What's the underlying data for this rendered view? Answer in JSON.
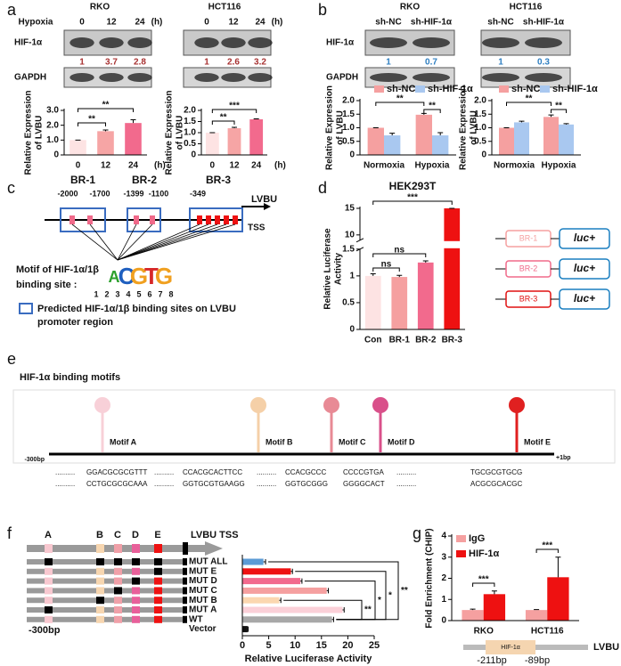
{
  "panel_labels": [
    "a",
    "b",
    "c",
    "d",
    "e",
    "f",
    "g"
  ],
  "blots": [
    {
      "title": "RKO",
      "condition": "Hypoxia",
      "lanes": [
        "0",
        "12",
        "24"
      ],
      "unit": "(h)",
      "rows": [
        "HIF-1α",
        "GAPDH"
      ],
      "quant": [
        "1",
        "3.7",
        "2.8"
      ]
    },
    {
      "title": "HCT116",
      "lanes": [
        "0",
        "12",
        "24"
      ],
      "unit": "(h)",
      "quant": [
        "1",
        "2.6",
        "3.2"
      ]
    },
    {
      "title": "RKO",
      "lanes": [
        "sh-NC",
        "sh-HIF-1α"
      ],
      "rows": [
        "HIF-1α",
        "GAPDH"
      ],
      "quant": [
        "1",
        "0.7"
      ]
    },
    {
      "title": "HCT116",
      "lanes": [
        "sh-NC",
        "sh-HIF-1α"
      ],
      "quant": [
        "1",
        "0.3"
      ]
    }
  ],
  "promoter": {
    "regions": [
      {
        "name": "BR-1",
        "start": "-2000",
        "end": "-1700"
      },
      {
        "name": "BR-2",
        "start": "-1399",
        "end": "-1100"
      },
      {
        "name": "BR-3",
        "start": "-349"
      }
    ],
    "gene": "LVBU",
    "tss": "TSS",
    "motif_title": [
      "Motif of HIF-1α/1β",
      "binding site :"
    ],
    "logo": [
      "A",
      "C",
      "G",
      "T",
      "G"
    ],
    "positions": [
      "1",
      "2",
      "3",
      "4",
      "5",
      "6",
      "7",
      "8"
    ],
    "legend": [
      "Predicted HIF-1α/1β binding sites on LVBU",
      "promoter region"
    ]
  },
  "constructs": {
    "items": [
      "BR-1",
      "BR-2",
      "BR-3"
    ],
    "reporter": "luc+"
  },
  "motifs": {
    "title": "HIF-1α binding motifs",
    "start": "-300bp",
    "end": "+1bp",
    "spacer": "..........",
    "items": [
      {
        "name": "Motif A",
        "seq": [
          "GGACGCGCGTTT",
          "CCTGCGCGCAAA"
        ]
      },
      {
        "name": "Motif B",
        "seq": [
          "CCACGCACTTCC",
          "GGTGCGTGAAGG"
        ]
      },
      {
        "name": "Motif C",
        "seq": [
          "CCACGCCC",
          "GGTGCGGG"
        ]
      },
      {
        "name": "Motif D",
        "seq": [
          "CCCCGTGA",
          "GGGGCACT"
        ]
      },
      {
        "name": "Motif E",
        "seq": [
          "TGCGCGTGCG",
          "ACGCGCACGC"
        ]
      }
    ]
  },
  "reporter_map": {
    "letters": [
      "A",
      "B",
      "C",
      "D",
      "E"
    ],
    "gene": "LVBU TSS",
    "start": "-300bp"
  },
  "chip_map": {
    "box": "HIF-1α",
    "gene": "LVBU",
    "sites": [
      "-211bp",
      "-89bp"
    ]
  },
  "chart_data": [
    {
      "type": "bar",
      "categories": [
        "0",
        "12",
        "24"
      ],
      "xlabel": "(h)",
      "ylabel": [
        "Relative Expression",
        "of LVBU"
      ],
      "values": [
        1,
        1.6,
        2.15
      ],
      "errors": [
        0,
        0.08,
        0.22
      ],
      "colors": [
        "#fde3e3",
        "#f6a5a5",
        "#f26a8d"
      ],
      "ylim": [
        0,
        3
      ],
      "yticks": [
        0,
        {
          "value": 1,
          "label": "1.0"
        },
        {
          "value": 2,
          "label": "2.0"
        },
        {
          "value": 3,
          "label": "3.0"
        }
      ],
      "significance": [
        "**",
        "**"
      ]
    },
    {
      "type": "bar",
      "categories": [
        "0",
        "12",
        "24"
      ],
      "xlabel": "(h)",
      "ylabel": [
        "Relative Expression",
        "of LVBU"
      ],
      "values": [
        1,
        1.2,
        1.6
      ],
      "errors": [
        0,
        0.04,
        0.02
      ],
      "colors": [
        "#fde3e3",
        "#f6a5a5",
        "#f26a8d"
      ],
      "ylim": [
        0,
        2
      ],
      "yticks": [
        0,
        0.5,
        {
          "value": 1,
          "label": "1.0"
        },
        1.5,
        {
          "value": 2,
          "label": "2.0"
        }
      ],
      "significance": [
        "**",
        "***"
      ]
    },
    {
      "type": "bar",
      "categories": [
        "Normoxia",
        "Hypoxia"
      ],
      "ylabel": [
        "Relative Expression",
        "of LVBU"
      ],
      "series": [
        {
          "name": "sh-NC",
          "color": "#f5a0a0",
          "values": [
            1,
            1.48
          ],
          "errors": [
            0,
            0.05
          ]
        },
        {
          "name": "sh-HIF-1α",
          "color": "#a9c8f0",
          "values": [
            0.72,
            0.72
          ],
          "errors": [
            0.08,
            0.1
          ]
        }
      ],
      "ylim": [
        0,
        2
      ],
      "yticks": [
        0,
        0.5,
        {
          "value": 1,
          "label": "1.0"
        },
        1.5,
        {
          "value": 2,
          "label": "2.0"
        }
      ],
      "significance": [
        "**",
        "**"
      ]
    },
    {
      "type": "bar",
      "categories": [
        "Normoxia",
        "Hypoxia"
      ],
      "ylabel": [
        "Relative Expression",
        "of LVBU"
      ],
      "series": [
        {
          "name": "sh-NC",
          "color": "#f5a0a0",
          "values": [
            1,
            1.4
          ],
          "errors": [
            0,
            0.07
          ]
        },
        {
          "name": "sh-HIF-1α",
          "color": "#a9c8f0",
          "values": [
            1.2,
            1.12
          ],
          "errors": [
            0.04,
            0.03
          ]
        }
      ],
      "ylim": [
        0,
        2
      ],
      "yticks": [
        0,
        0.5,
        {
          "value": 1,
          "label": "1.0"
        },
        1.5,
        {
          "value": 2,
          "label": "2.0"
        }
      ],
      "significance": [
        "**",
        "**"
      ]
    },
    {
      "type": "bar",
      "title": "HEK293T",
      "categories": [
        "Con",
        "BR-1",
        "BR-2",
        "BR-3"
      ],
      "ylabel": [
        "Relative Luciferase",
        "Activity"
      ],
      "values": [
        1,
        0.98,
        1.25,
        15
      ],
      "errors": [
        0.04,
        0.03,
        0.03,
        0
      ],
      "colors": [
        "#fde3e3",
        "#f5a0a0",
        "#f26a8d",
        "#ee1111"
      ],
      "ylim": [
        0,
        15
      ],
      "ybreak": [
        1.5,
        9
      ],
      "yticks": [
        0,
        0.5,
        1,
        1.5,
        10,
        15
      ],
      "significance": [
        "***",
        "ns",
        "ns"
      ]
    },
    {
      "type": "bar",
      "orientation": "horizontal",
      "categories": [
        "MUT ALL",
        "MUT E",
        "MUT D",
        "MUT C",
        "MUT B",
        "MUT A",
        "WT",
        "Vector"
      ],
      "values": [
        4,
        9.2,
        11,
        16,
        7,
        19,
        17,
        1
      ],
      "errors": [
        0.4,
        0.3,
        0.3,
        0.3,
        0.3,
        0.3,
        0.3,
        0.1
      ],
      "colors": [
        "#5b9bd5",
        "#ee1111",
        "#f26a8d",
        "#f5a0a0",
        "#fbd7b0",
        "#fbd0d8",
        "#a8a8a8",
        "#111111"
      ],
      "xlabel": "Relative Luciferase Activity",
      "xlim": [
        0,
        25
      ],
      "xticks": [
        0,
        5,
        10,
        15,
        20,
        25
      ],
      "significance": [
        "**",
        "*",
        "*",
        "**"
      ]
    },
    {
      "type": "bar",
      "categories": [
        "RKO",
        "HCT116"
      ],
      "ylabel": "Fold Enrichment (CHIP)",
      "series": [
        {
          "name": "IgG",
          "color": "#f5a0a0",
          "values": [
            0.5,
            0.5
          ],
          "errors": [
            0.04,
            0.02
          ]
        },
        {
          "name": "HIF-1α",
          "color": "#ee1111",
          "values": [
            1.25,
            2.05
          ],
          "errors": [
            0.15,
            0.95
          ]
        }
      ],
      "ylim": [
        0,
        4
      ],
      "yticks": [
        0,
        1,
        2,
        3,
        4
      ],
      "significance": [
        "***",
        "***"
      ]
    }
  ]
}
